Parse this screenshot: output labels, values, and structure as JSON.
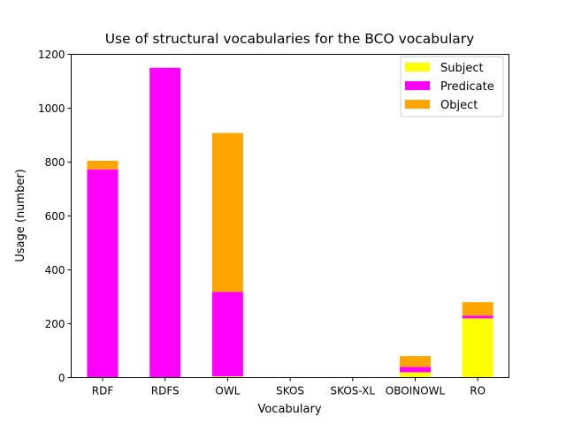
{
  "chart_data": {
    "type": "bar",
    "stacked": true,
    "title": "Use of structural vocabularies for the BCO vocabulary",
    "xlabel": "Vocabulary",
    "ylabel": "Usage (number)",
    "ylim": [
      0,
      1200
    ],
    "yticks": [
      0,
      200,
      400,
      600,
      800,
      1000,
      1200
    ],
    "categories": [
      "RDF",
      "RDFS",
      "OWL",
      "SKOS",
      "SKOS-XL",
      "OBOINOWL",
      "RO"
    ],
    "series": [
      {
        "name": "Subject",
        "color": "#ffff00",
        "values": [
          0,
          0,
          5,
          0,
          0,
          20,
          220
        ]
      },
      {
        "name": "Predicate",
        "color": "#ff00ff",
        "values": [
          773,
          1150,
          313,
          0,
          0,
          20,
          10
        ]
      },
      {
        "name": "Object",
        "color": "#ffa500",
        "values": [
          32,
          0,
          590,
          0,
          0,
          40,
          50
        ]
      }
    ],
    "legend_position": "top-right",
    "grid": false
  }
}
